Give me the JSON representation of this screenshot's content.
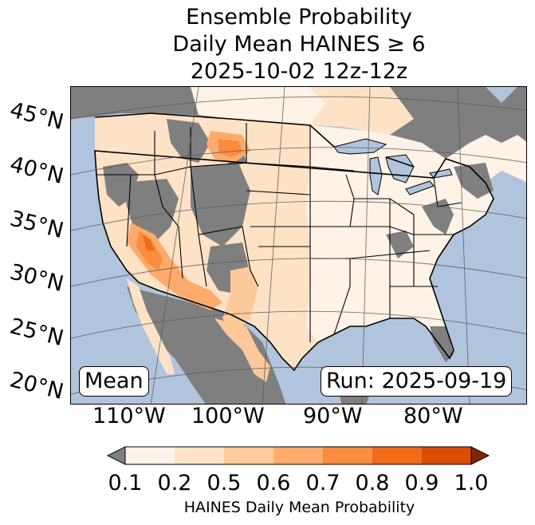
{
  "title": {
    "line1": "Ensemble Probability",
    "line2": "Daily Mean HAINES ≥ 6",
    "line3": "2025-10-02 12z-12z"
  },
  "lat_labels": [
    "45°N",
    "40°N",
    "35°N",
    "30°N",
    "25°N",
    "20°N"
  ],
  "lon_labels": [
    "110°W",
    "100°W",
    "90°W",
    "80°W"
  ],
  "mean_label": "Mean",
  "run_label": "Run: 2025-09-19",
  "colorbar": {
    "ticks": [
      "0.1",
      "0.2",
      "0.5",
      "0.6",
      "0.7",
      "0.8",
      "0.9",
      "1.0"
    ],
    "colors": [
      "#fff2e6",
      "#fee2c6",
      "#fdc99a",
      "#fdab6c",
      "#f98c40",
      "#ef6c1a",
      "#da4e06"
    ],
    "under_color": "#7f7f7f",
    "over_color": "#7f2704",
    "label": "HAINES Daily Mean Probability"
  },
  "map_colors": {
    "ocean": "#b1c4dd",
    "land_masked": "#7f7f7f",
    "borders": "#000000",
    "graticule": "#555555"
  }
}
